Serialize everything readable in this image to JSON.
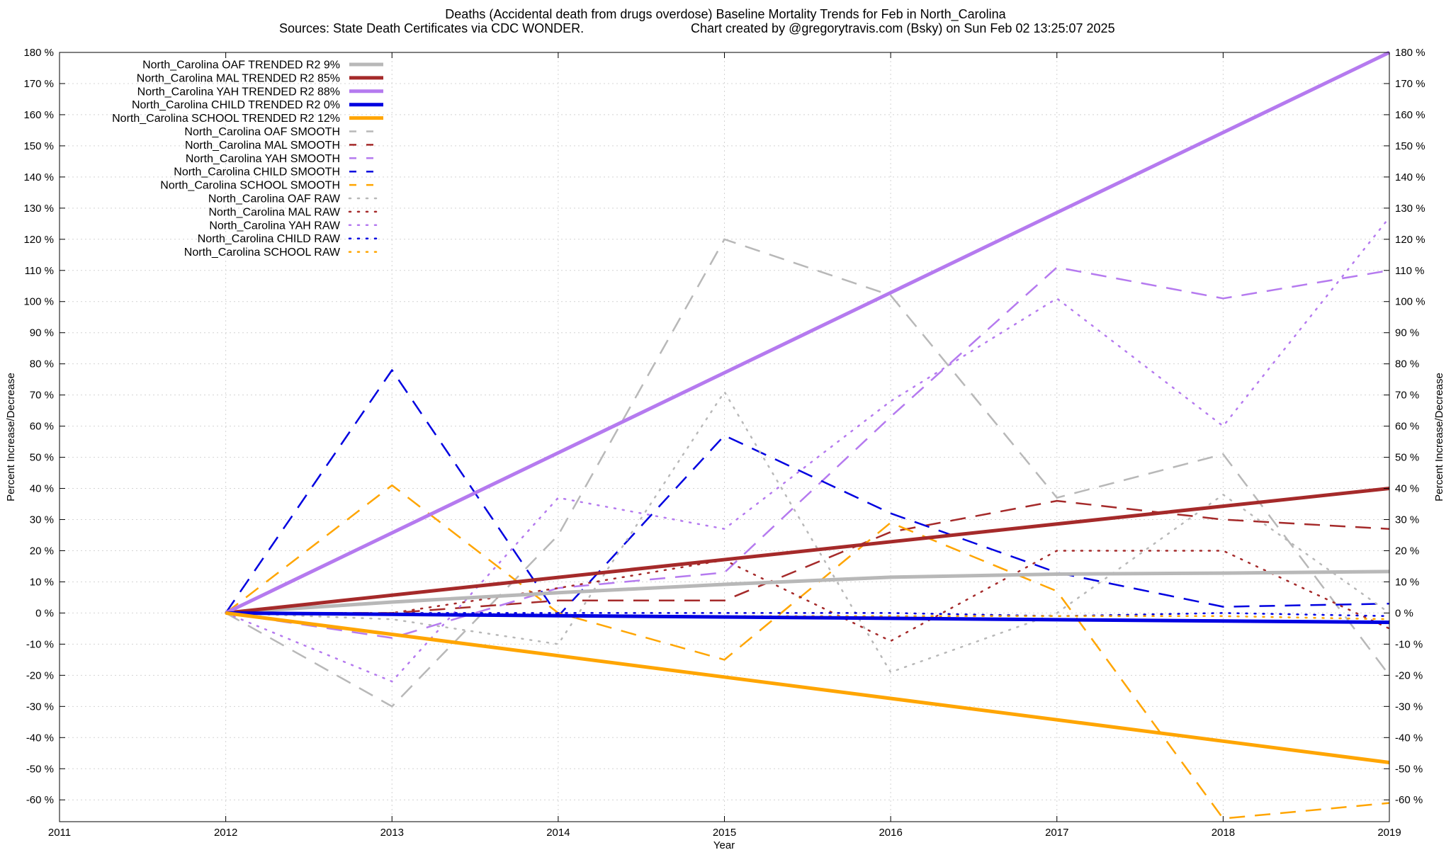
{
  "chart_data": {
    "type": "line",
    "title_line1": "Deaths (Accidental death from drugs overdose)  Baseline Mortality Trends for Feb in North_Carolina",
    "title_line2_left": "Sources: State Death Certificates via CDC WONDER.",
    "title_line2_right": "Chart created by @gregorytravis.com (Bsky) on Sun Feb 02 13:25:07 2025",
    "xlabel": "Year",
    "ylabel_left": "Percent Increase/Decrease",
    "ylabel_right": "Percent Increase/Decrease",
    "xlim": [
      2011,
      2019
    ],
    "ylim": [
      -67,
      180
    ],
    "x_ticks": [
      "2011",
      "2012",
      "2013",
      "2014",
      "2015",
      "2016",
      "2017",
      "2018",
      "2019"
    ],
    "y_ticks": [
      "180 %",
      "170 %",
      "160 %",
      "150 %",
      "140 %",
      "130 %",
      "120 %",
      "110 %",
      "100 %",
      "90 %",
      "80 %",
      "70 %",
      "60 %",
      "50 %",
      "40 %",
      "30 %",
      "20 %",
      "10 %",
      "0 %",
      "-10 %",
      "-20 %",
      "-30 %",
      "-40 %",
      "-50 %",
      "-60 %"
    ],
    "grid": true,
    "legend_position": "top-left",
    "series": [
      {
        "name": "North_Carolina OAF TRENDED R2  9%",
        "style": "solid",
        "color": "#b8b8b8",
        "x": [
          2012,
          2013,
          2014,
          2015,
          2016,
          2017,
          2018,
          2019
        ],
        "values": [
          0,
          3.5,
          6.5,
          9.2,
          11.5,
          12.5,
          12.8,
          13.3
        ]
      },
      {
        "name": "North_Carolina MAL TRENDED R2  85%",
        "style": "solid",
        "color": "#a52a2a",
        "x": [
          2012,
          2019
        ],
        "values": [
          0,
          40
        ]
      },
      {
        "name": "North_Carolina YAH TRENDED R2  88%",
        "style": "solid",
        "color": "#b57aef",
        "x": [
          2012,
          2019
        ],
        "values": [
          0,
          180
        ]
      },
      {
        "name": "North_Carolina CHILD TRENDED R2   0%",
        "style": "solid",
        "color": "#0000e0",
        "x": [
          2012,
          2019
        ],
        "values": [
          0,
          -3
        ]
      },
      {
        "name": "North_Carolina SCHOOL TRENDED R2  12%",
        "style": "solid",
        "color": "#ffa500",
        "x": [
          2012,
          2019
        ],
        "values": [
          0,
          -48
        ]
      },
      {
        "name": "North_Carolina OAF SMOOTH",
        "style": "dashed",
        "color": "#b8b8b8",
        "x": [
          2012,
          2013,
          2014,
          2015,
          2016,
          2017,
          2018,
          2019
        ],
        "values": [
          0,
          -30,
          25,
          120,
          102,
          37,
          51,
          -20
        ]
      },
      {
        "name": "North_Carolina MAL SMOOTH",
        "style": "dashed",
        "color": "#a52a2a",
        "x": [
          2012,
          2013,
          2014,
          2015,
          2016,
          2017,
          2018,
          2019
        ],
        "values": [
          0,
          0,
          4,
          4,
          26,
          36,
          30,
          27
        ]
      },
      {
        "name": "North_Carolina YAH SMOOTH",
        "style": "dashed",
        "color": "#b57aef",
        "x": [
          2012,
          2013,
          2014,
          2015,
          2016,
          2017,
          2018,
          2019
        ],
        "values": [
          0,
          -8,
          8,
          13,
          63,
          111,
          101,
          110
        ]
      },
      {
        "name": "North_Carolina CHILD SMOOTH",
        "style": "dashed",
        "color": "#0000e0",
        "x": [
          2012,
          2013,
          2014,
          2015,
          2016,
          2017,
          2018,
          2019
        ],
        "values": [
          0,
          78,
          -1,
          57,
          32,
          13,
          2,
          3
        ]
      },
      {
        "name": "North_Carolina SCHOOL SMOOTH",
        "style": "dashed",
        "color": "#ffa500",
        "x": [
          2012,
          2013,
          2014,
          2015,
          2016,
          2017,
          2018,
          2019
        ],
        "values": [
          0,
          41,
          0,
          -15,
          29,
          7,
          -66,
          -61
        ]
      },
      {
        "name": "North_Carolina OAF RAW",
        "style": "dotted",
        "color": "#b8b8b8",
        "x": [
          2012,
          2013,
          2014,
          2015,
          2016,
          2017,
          2018,
          2019
        ],
        "values": [
          0,
          -2,
          -10,
          71,
          -19,
          0,
          38,
          0
        ]
      },
      {
        "name": "North_Carolina MAL RAW",
        "style": "dotted",
        "color": "#a52a2a",
        "x": [
          2012,
          2013,
          2014,
          2015,
          2016,
          2017,
          2018,
          2019
        ],
        "values": [
          0,
          0,
          8,
          17,
          -9,
          20,
          20,
          -5
        ]
      },
      {
        "name": "North_Carolina YAH RAW",
        "style": "dotted",
        "color": "#b57aef",
        "x": [
          2012,
          2013,
          2014,
          2015,
          2016,
          2017,
          2018,
          2019
        ],
        "values": [
          0,
          -22,
          37,
          27,
          68,
          101,
          60,
          127
        ]
      },
      {
        "name": "North_Carolina CHILD RAW",
        "style": "dotted",
        "color": "#0000e0",
        "x": [
          2012,
          2013,
          2014,
          2015,
          2016,
          2017,
          2018,
          2019
        ],
        "values": [
          0,
          0,
          0,
          0,
          0,
          -1,
          0,
          -1
        ]
      },
      {
        "name": "North_Carolina SCHOOL RAW",
        "style": "dotted",
        "color": "#ffa500",
        "x": [
          2012,
          2013,
          2014,
          2015,
          2016,
          2017,
          2018,
          2019
        ],
        "values": [
          0,
          0,
          -1,
          -1,
          -1,
          -1,
          -1,
          -2
        ]
      }
    ]
  }
}
